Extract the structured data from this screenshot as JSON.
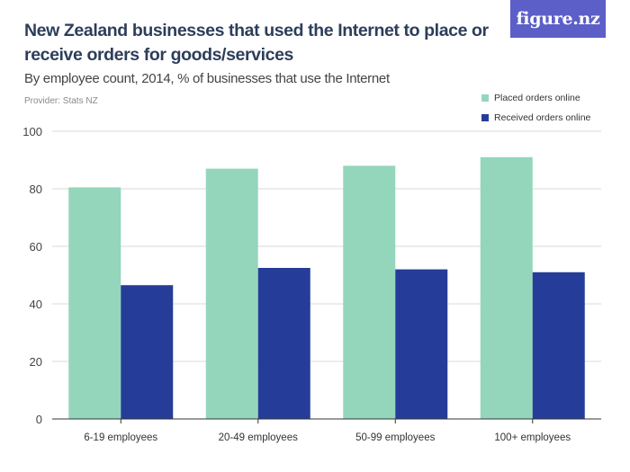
{
  "header": {
    "title": "New Zealand businesses that used the Internet to place or receive orders for goods/services",
    "subtitle": "By employee count, 2014, % of businesses that use the Internet",
    "provider": "Provider: Stats NZ",
    "brand": "figure.nz"
  },
  "colors": {
    "placed": "#94d6bb",
    "received": "#253d99",
    "brand_bg": "#5b5fc7",
    "grid": "#d9d9d9"
  },
  "chart_data": {
    "type": "bar",
    "categories": [
      "6-19 employees",
      "20-49 employees",
      "50-99 employees",
      "100+ employees"
    ],
    "series": [
      {
        "name": "Placed orders online",
        "values": [
          80.5,
          87,
          88,
          91
        ]
      },
      {
        "name": "Received orders online",
        "values": [
          46.5,
          52.5,
          52,
          51
        ]
      }
    ],
    "ylim": [
      0,
      100
    ],
    "yticks": [
      0,
      20,
      40,
      60,
      80,
      100
    ],
    "grid": true,
    "legend_position": "top-right"
  }
}
